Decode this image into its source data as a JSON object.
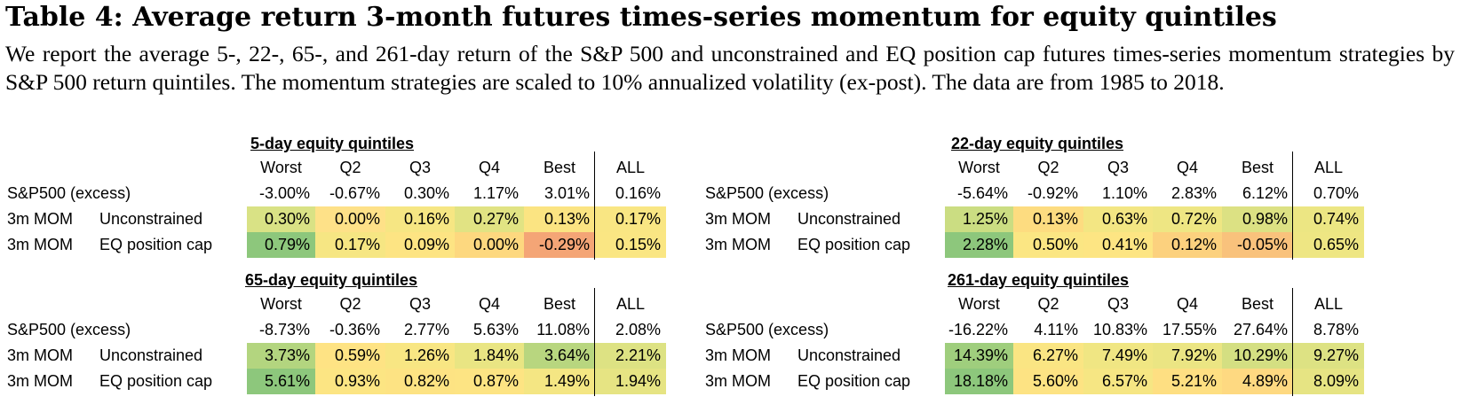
{
  "title": "Table 4: Average return 3-month futures times-series momentum for equity quintiles",
  "description": "We report the average 5-, 22-, 65-, and 261-day return of the S&P 500 and unconstrained and EQ position cap futures times-series momentum strategies by S&P 500 return quintiles. The momentum strategies are scaled to 10% annualized volatility (ex-post). The data are from 1985 to 2018.",
  "columns": [
    "Worst",
    "Q2",
    "Q3",
    "Q4",
    "Best",
    "ALL"
  ],
  "row_labels": {
    "sp500": "S&P500 (excess)",
    "mom": "3m MOM",
    "unconstrained": "Unconstrained",
    "eqcap": "EQ position cap"
  },
  "panels": [
    {
      "title": "5-day equity quintiles",
      "sp500": [
        "-3.00%",
        "-0.67%",
        "0.30%",
        "1.17%",
        "3.01%",
        "0.16%"
      ],
      "unconstrained": [
        "0.30%",
        "0.00%",
        "0.16%",
        "0.27%",
        "0.13%",
        "0.17%"
      ],
      "unconstrained_colors": [
        "#d9e285",
        "#fee188",
        "#f6e683",
        "#e1e383",
        "#fbe482",
        "#f9e683"
      ],
      "eqcap": [
        "0.79%",
        "0.17%",
        "0.09%",
        "0.00%",
        "-0.29%",
        "0.15%"
      ],
      "eqcap_colors": [
        "#8dc77c",
        "#f6e683",
        "#fde483",
        "#fdd87f",
        "#f4a576",
        "#fae683"
      ]
    },
    {
      "title": "22-day equity quintiles",
      "sp500": [
        "-5.64%",
        "-0.92%",
        "1.10%",
        "2.83%",
        "6.12%",
        "0.70%"
      ],
      "unconstrained": [
        "1.25%",
        "0.13%",
        "0.63%",
        "0.72%",
        "0.98%",
        "0.74%"
      ],
      "unconstrained_colors": [
        "#cbdd82",
        "#fddc80",
        "#f3e683",
        "#eee683",
        "#dce183",
        "#ece683"
      ],
      "eqcap": [
        "2.28%",
        "0.50%",
        "0.41%",
        "0.12%",
        "-0.05%",
        "0.65%"
      ],
      "eqcap_colors": [
        "#8dc77c",
        "#fbe683",
        "#fde583",
        "#fcd17e",
        "#f9c27c",
        "#eee683"
      ]
    },
    {
      "title": "65-day equity quintiles",
      "sp500": [
        "-8.73%",
        "-0.36%",
        "2.77%",
        "5.63%",
        "11.08%",
        "2.08%"
      ],
      "unconstrained": [
        "3.73%",
        "0.59%",
        "1.26%",
        "1.84%",
        "3.64%",
        "2.21%"
      ],
      "unconstrained_colors": [
        "#b3d57f",
        "#fee384",
        "#f8e683",
        "#e9e583",
        "#b8d67f",
        "#dde283"
      ],
      "eqcap": [
        "5.61%",
        "0.93%",
        "0.82%",
        "0.87%",
        "1.49%",
        "1.94%"
      ],
      "eqcap_colors": [
        "#8dc77c",
        "#fce583",
        "#fde383",
        "#fde483",
        "#f4e683",
        "#e6e483"
      ]
    },
    {
      "title": "261-day equity quintiles",
      "sp500": [
        "-16.22%",
        "4.11%",
        "10.83%",
        "17.55%",
        "27.64%",
        "8.78%"
      ],
      "unconstrained": [
        "14.39%",
        "6.27%",
        "7.49%",
        "7.92%",
        "10.29%",
        "9.27%"
      ],
      "unconstrained_colors": [
        "#9fce7d",
        "#fae583",
        "#f0e683",
        "#ebe583",
        "#d4df82",
        "#dde283"
      ],
      "eqcap": [
        "18.18%",
        "5.60%",
        "6.57%",
        "5.21%",
        "4.89%",
        "8.09%"
      ],
      "eqcap_colors": [
        "#8dc77c",
        "#fde383",
        "#f6e683",
        "#fedf82",
        "#fed981",
        "#e6e483"
      ]
    }
  ]
}
